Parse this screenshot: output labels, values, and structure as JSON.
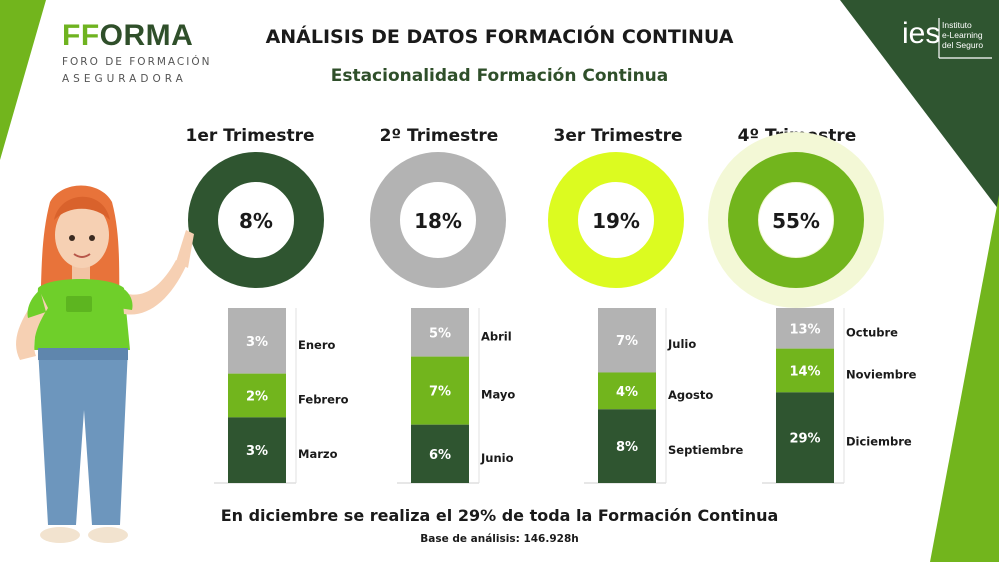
{
  "header": {
    "title": "ANÁLISIS DE DATOS FORMACIÓN CONTINUA",
    "subtitle": "Estacionalidad Formación Continua"
  },
  "logo_left": {
    "brand_part1": "FF",
    "brand_part2": "ORMA",
    "tagline_line1": "FORO DE FORMACIÓN",
    "tagline_line2": "ASEGURADORA"
  },
  "logo_right": {
    "mark": "ies",
    "line1": "Instituto",
    "line2": "e-Learning",
    "line3": "del Seguro"
  },
  "colors": {
    "dark_green": "#2f5530",
    "mid_green": "#72b51d",
    "lime": "#dcfb20",
    "grey": "#b3b3b3",
    "q4_glow": "#f3f8d6"
  },
  "chart_data": [
    {
      "type": "pie",
      "title": "",
      "variant": "donut",
      "quarters": [
        {
          "label": "1er Trimestre",
          "value": 8,
          "display": "8%",
          "color": "#2f5530"
        },
        {
          "label": "2º Trimestre",
          "value": 18,
          "display": "18%",
          "color": "#b3b3b3"
        },
        {
          "label": "3er Trimestre",
          "value": 19,
          "display": "19%",
          "color": "#dcfb20"
        },
        {
          "label": "4º Trimestre",
          "value": 55,
          "display": "55%",
          "color": "#72b51d"
        }
      ]
    },
    {
      "type": "bar",
      "variant": "stacked",
      "unit": "%",
      "quarters": [
        {
          "quarter": "1er Trimestre",
          "months": [
            {
              "month": "Enero",
              "value": 3,
              "display": "3%",
              "color": "#b3b3b3"
            },
            {
              "month": "Febrero",
              "value": 2,
              "display": "2%",
              "color": "#72b51d"
            },
            {
              "month": "Marzo",
              "value": 3,
              "display": "3%",
              "color": "#2f5530"
            }
          ]
        },
        {
          "quarter": "2º Trimestre",
          "months": [
            {
              "month": "Abril",
              "value": 5,
              "display": "5%",
              "color": "#b3b3b3"
            },
            {
              "month": "Mayo",
              "value": 7,
              "display": "7%",
              "color": "#72b51d"
            },
            {
              "month": "Junio",
              "value": 6,
              "display": "6%",
              "color": "#2f5530"
            }
          ]
        },
        {
          "quarter": "3er Trimestre",
          "months": [
            {
              "month": "Julio",
              "value": 7,
              "display": "7%",
              "color": "#b3b3b3"
            },
            {
              "month": "Agosto",
              "value": 4,
              "display": "4%",
              "color": "#72b51d"
            },
            {
              "month": "Septiembre",
              "value": 8,
              "display": "8%",
              "color": "#2f5530"
            }
          ]
        },
        {
          "quarter": "4º Trimestre",
          "months": [
            {
              "month": "Octubre",
              "value": 13,
              "display": "13%",
              "color": "#b3b3b3"
            },
            {
              "month": "Noviembre",
              "value": 14,
              "display": "14%",
              "color": "#72b51d"
            },
            {
              "month": "Diciembre",
              "value": 29,
              "display": "29%",
              "color": "#2f5530"
            }
          ]
        }
      ]
    }
  ],
  "footer": {
    "headline": "En diciembre se realiza el 29% de toda la Formación Continua",
    "base": "Base de análisis: 146.928h"
  }
}
